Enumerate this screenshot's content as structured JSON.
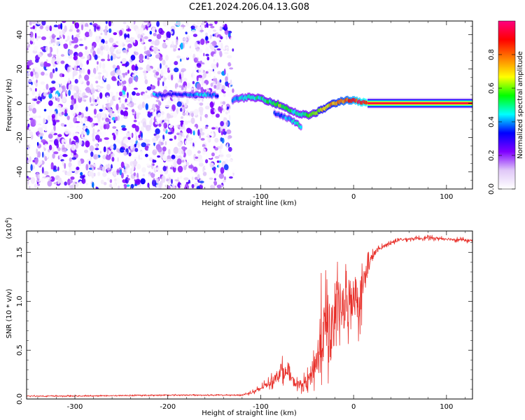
{
  "figure": {
    "title": "C2E1.2024.206.04.13.G08"
  },
  "chart_data": [
    {
      "type": "heatmap",
      "xlabel": "Height of straight line (km)",
      "ylabel": "Frequency (Hz)",
      "xlim": [
        -352,
        128
      ],
      "ylim": [
        -50,
        48
      ],
      "xticks": [
        -300,
        -200,
        -100,
        0,
        100
      ],
      "yticks": [
        -40,
        -20,
        0,
        20,
        40
      ],
      "grid": false,
      "colorbar": {
        "label": "Normalized spectral amplitude",
        "ticks": [
          "0.0",
          "0.2",
          "0.4",
          "0.6",
          "0.8"
        ],
        "range": [
          0,
          1
        ],
        "colormap": [
          "#ffffff",
          "#e0c8f8",
          "#8000ff",
          "#0000ff",
          "#00ffff",
          "#00ff00",
          "#ffff00",
          "#ff8000",
          "#ff0000",
          "#ff0080"
        ]
      },
      "main_tone": [
        {
          "x": -130,
          "f": 2,
          "a": 0.42
        },
        {
          "x": -115,
          "f": 3.5,
          "a": 0.48
        },
        {
          "x": -100,
          "f": 3,
          "a": 0.5
        },
        {
          "x": -90,
          "f": 1,
          "a": 0.55
        },
        {
          "x": -80,
          "f": -1,
          "a": 0.6
        },
        {
          "x": -72,
          "f": -3,
          "a": 0.55
        },
        {
          "x": -60,
          "f": -6,
          "a": 0.5
        },
        {
          "x": -50,
          "f": -7,
          "a": 0.55
        },
        {
          "x": -42,
          "f": -6,
          "a": 0.6
        },
        {
          "x": -35,
          "f": -4,
          "a": 0.7
        },
        {
          "x": -25,
          "f": -1,
          "a": 0.75
        },
        {
          "x": -15,
          "f": 1,
          "a": 0.8
        },
        {
          "x": -5,
          "f": 2,
          "a": 0.85
        },
        {
          "x": 5,
          "f": 1,
          "a": 0.95
        },
        {
          "x": 15,
          "f": 0,
          "a": 1.0
        },
        {
          "x": 60,
          "f": 0,
          "a": 1.0
        },
        {
          "x": 128,
          "f": 0,
          "a": 1.0
        }
      ],
      "secondary_tone": [
        {
          "x": -215,
          "f": 5,
          "a": 0.45
        },
        {
          "x": -200,
          "f": 5,
          "a": 0.3
        },
        {
          "x": -175,
          "f": 5,
          "a": 0.4
        },
        {
          "x": -160,
          "f": 5,
          "a": 0.45
        },
        {
          "x": -145,
          "f": 4.5,
          "a": 0.35
        }
      ],
      "lower_branch": [
        {
          "x": -85,
          "f": -6,
          "a": 0.35
        },
        {
          "x": -70,
          "f": -9,
          "a": 0.45
        },
        {
          "x": -60,
          "f": -12,
          "a": 0.5
        },
        {
          "x": -55,
          "f": -14,
          "a": 0.4
        }
      ]
    },
    {
      "type": "line",
      "xlabel": "Height of straight line (km)",
      "ylabel": "SNR (10 * v/v)",
      "scale_label": "(x10",
      "scale_exp": "4",
      "scale_close": ")",
      "xlim": [
        -352,
        128
      ],
      "ylim": [
        0,
        1.72
      ],
      "xticks": [
        -300,
        -200,
        -100,
        0,
        100
      ],
      "yticks": [
        "0.0",
        "0.5",
        "1.0",
        "1.5"
      ],
      "series": [
        {
          "color": "#e8302a",
          "x": [
            -352,
            -300,
            -200,
            -120,
            -105,
            -95,
            -85,
            -78,
            -70,
            -62,
            -55,
            -48,
            -42,
            -38,
            -35,
            -30,
            -25,
            -20,
            -15,
            -10,
            -5,
            0,
            5,
            10,
            15,
            20,
            25,
            30,
            35,
            40,
            50,
            60,
            80,
            100,
            128
          ],
          "y": [
            0.03,
            0.03,
            0.04,
            0.04,
            0.08,
            0.14,
            0.2,
            0.3,
            0.25,
            0.15,
            0.15,
            0.2,
            0.35,
            0.45,
            0.6,
            0.75,
            0.7,
            0.85,
            0.95,
            0.9,
            1.0,
            1.1,
            1.0,
            1.15,
            1.35,
            1.45,
            1.52,
            1.55,
            1.58,
            1.6,
            1.63,
            1.64,
            1.65,
            1.64,
            1.62
          ],
          "spread": [
            0.01,
            0.01,
            0.01,
            0.01,
            0.04,
            0.06,
            0.1,
            0.16,
            0.12,
            0.08,
            0.1,
            0.15,
            0.3,
            0.5,
            0.7,
            0.6,
            0.6,
            0.55,
            0.55,
            0.5,
            0.6,
            0.5,
            0.45,
            0.35,
            0.2,
            0.1,
            0.05,
            0.04,
            0.03,
            0.03,
            0.03,
            0.03,
            0.03,
            0.03,
            0.03
          ]
        }
      ]
    }
  ]
}
